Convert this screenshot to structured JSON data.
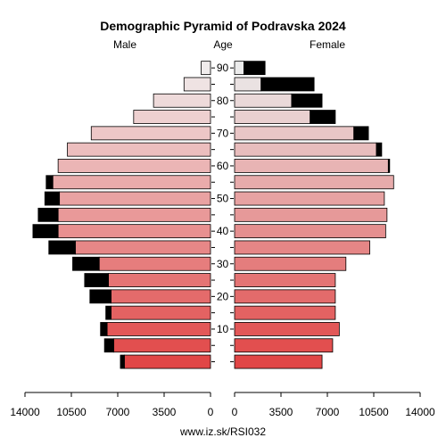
{
  "chart_data": {
    "type": "bar",
    "title": "Demographic Pyramid of Podravska 2024",
    "left_label": "Male",
    "center_label": "Age",
    "right_label": "Female",
    "footer": "www.iz.sk/RSI032",
    "x_ticks": [
      {
        "value": 14000,
        "label": "14000"
      },
      {
        "value": 10500,
        "label": "10500"
      },
      {
        "value": 7000,
        "label": "7000"
      },
      {
        "value": 3500,
        "label": "3500"
      },
      {
        "value": 0,
        "label": "0"
      }
    ],
    "age_ticks": [
      "10",
      "20",
      "30",
      "40",
      "50",
      "60",
      "70",
      "80",
      "90"
    ],
    "xlim": [
      0,
      14000
    ],
    "age_groups": [
      "0-4",
      "5-9",
      "10-14",
      "15-19",
      "20-24",
      "25-29",
      "30-34",
      "35-39",
      "40-44",
      "45-49",
      "50-54",
      "55-59",
      "60-64",
      "65-69",
      "70-74",
      "75-79",
      "80-84",
      "85-89",
      "90+"
    ],
    "series": [
      {
        "name": "Male",
        "total": [
          6800,
          8000,
          8300,
          7900,
          9100,
          9500,
          10400,
          12200,
          13400,
          13000,
          12500,
          12400,
          11500,
          10800,
          9000,
          5800,
          4300,
          2000,
          700
        ],
        "excess": [
          300,
          700,
          500,
          400,
          1600,
          1800,
          2000,
          2000,
          1900,
          1500,
          1100,
          500,
          0,
          0,
          0,
          0,
          0,
          0,
          0
        ]
      },
      {
        "name": "Female",
        "total": [
          6600,
          7400,
          7900,
          7600,
          7600,
          7600,
          8400,
          10200,
          11400,
          11500,
          11300,
          12000,
          11700,
          11100,
          10100,
          7600,
          6600,
          6000,
          2300
        ],
        "excess": [
          0,
          0,
          0,
          0,
          0,
          0,
          0,
          0,
          0,
          0,
          0,
          0,
          100,
          400,
          1100,
          1900,
          2300,
          4000,
          1600
        ]
      }
    ],
    "colors": {
      "excess": "#000000",
      "axis": "#000000"
    }
  }
}
